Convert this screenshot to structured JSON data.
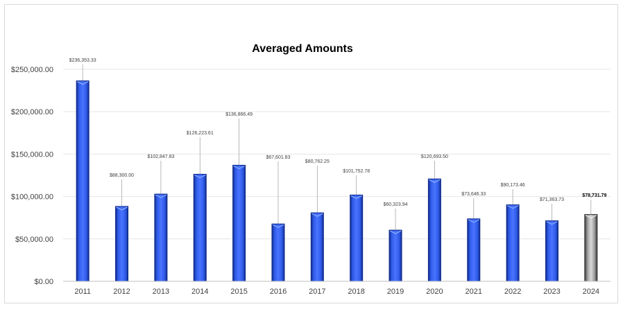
{
  "chart_data": {
    "type": "bar",
    "title": "Averaged Amounts",
    "xlabel": "",
    "ylabel": "",
    "ylim": [
      0,
      250000
    ],
    "yticks": [
      0,
      50000,
      100000,
      150000,
      200000,
      250000
    ],
    "ytick_labels": [
      "$0.00",
      "$50,000.00",
      "$100,000.00",
      "$150,000.00",
      "$200,000.00",
      "$250,000.00"
    ],
    "grid": true,
    "legend": "none",
    "categories": [
      "2011",
      "2012",
      "2013",
      "2014",
      "2015",
      "2016",
      "2017",
      "2018",
      "2019",
      "2020",
      "2021",
      "2022",
      "2023",
      "2024"
    ],
    "values": [
      236353.33,
      88300.0,
      102847.83,
      126223.61,
      136866.49,
      67601.83,
      80762.25,
      101752.78,
      60323.94,
      120693.5,
      73646.33,
      90173.46,
      71363.73,
      78731.79
    ],
    "data_labels": [
      "$236,353.33",
      "$88,300.00",
      "$102,847.83",
      "$126,223.61",
      "$136,866.49",
      "$67,601.83",
      "$80,762.25",
      "$101,752.78",
      "$60,323.94",
      "$120,693.50",
      "$73,646.33",
      "$90,173.46",
      "$71,363.73",
      "$78,731.79"
    ],
    "highlighted_category": "2024",
    "colors": {
      "bar": "#2f5be8",
      "bar_dark": "#0f2a8a",
      "highlight": "#a6a6a6",
      "highlight_dark": "#404040",
      "grid": "#e6e6e6",
      "axis": "#bfbfbf",
      "leader": "#a6a6a6"
    }
  }
}
